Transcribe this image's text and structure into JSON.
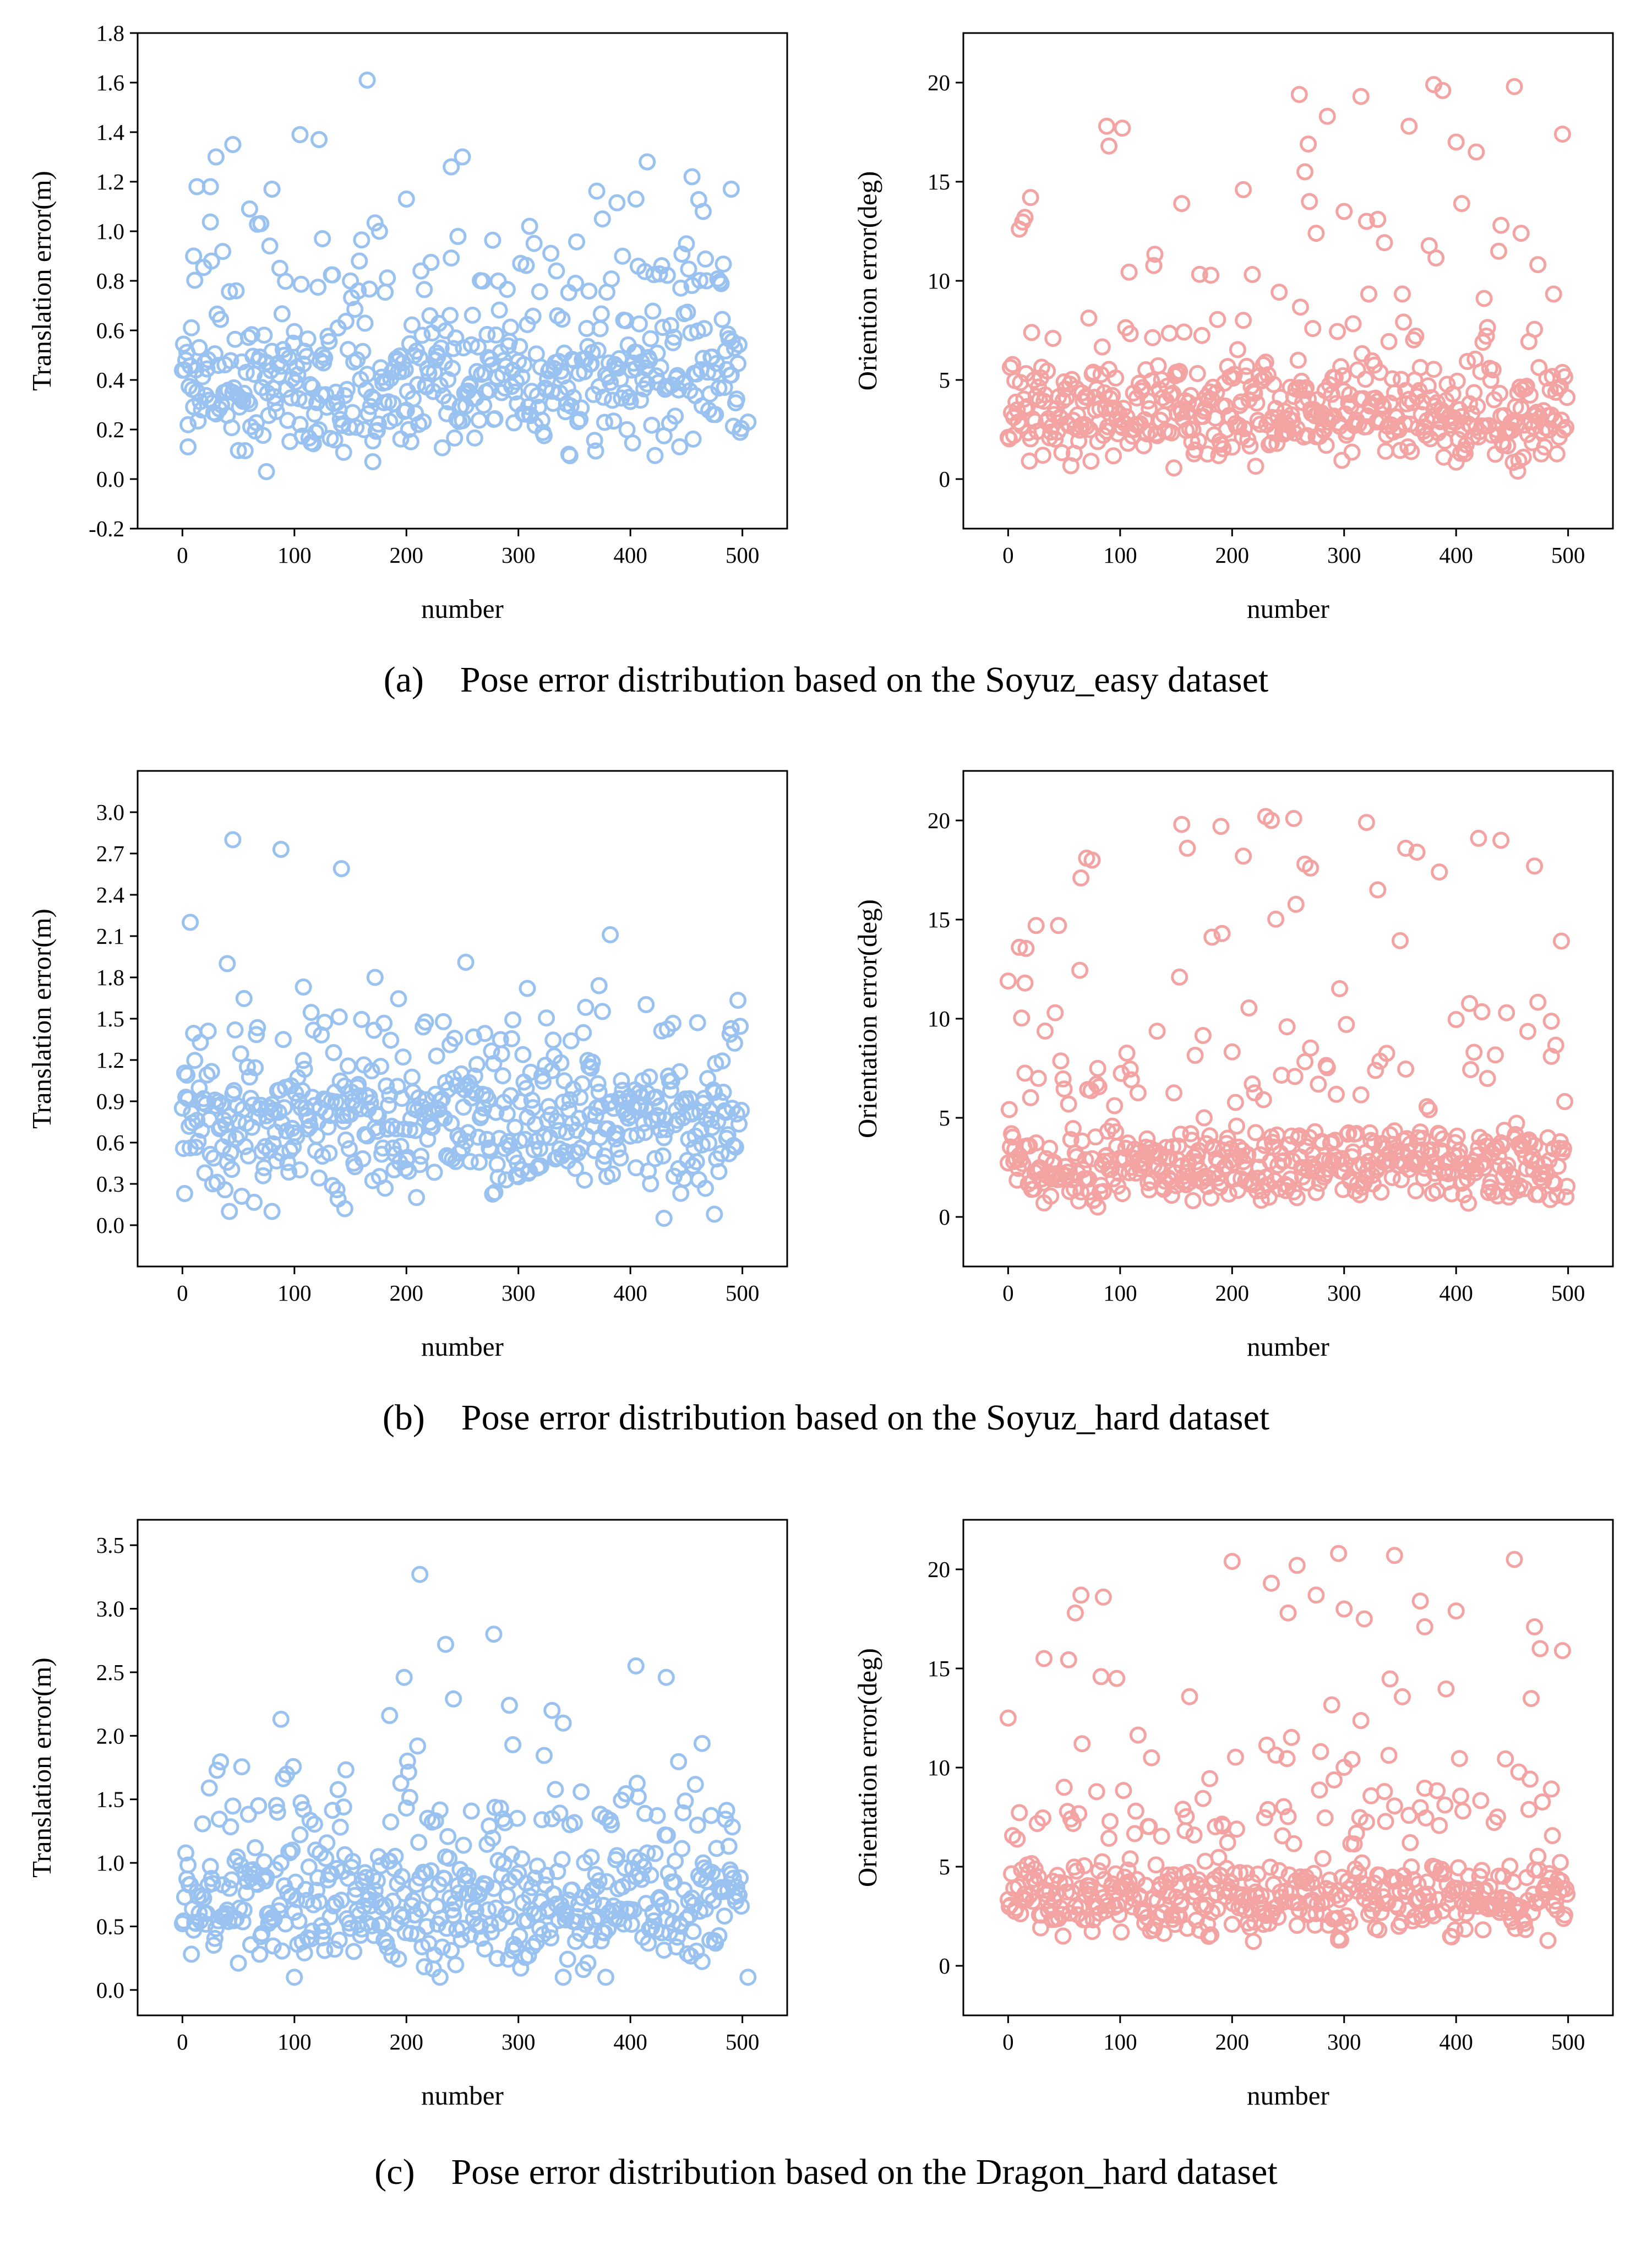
{
  "colors": {
    "translation": "#99c2f0",
    "orientation": "#f4a3a3"
  },
  "captions": [
    {
      "label": "(a)",
      "text": "Pose error distribution based on the Soyuz_easy dataset"
    },
    {
      "label": "(b)",
      "text": "Pose error distribution based on the Soyuz_hard dataset"
    },
    {
      "label": "(c)",
      "text": "Pose error distribution based on the Dragon_hard dataset"
    }
  ],
  "chart_data": [
    {
      "id": "a-translation",
      "type": "scatter",
      "color_key": "translation",
      "xlabel": "number",
      "ylabel": "Translation error(m)",
      "xlim": [
        -40,
        540
      ],
      "ylim": [
        -0.2,
        1.8
      ],
      "xticks": [
        0,
        100,
        200,
        300,
        400,
        500
      ],
      "yticks": [
        -0.2,
        0.0,
        0.2,
        0.4,
        0.6,
        0.8,
        1.0,
        1.2,
        1.4,
        1.6,
        1.8
      ],
      "ytick_labels": [
        "-0.2",
        "0.0",
        "0.2",
        "0.4",
        "0.6",
        "0.8",
        "1.0",
        "1.2",
        "1.4",
        "1.6",
        "1.8"
      ],
      "n_points": 500,
      "seed": 11,
      "bulk_range": [
        0.08,
        0.72
      ],
      "bulk_share": 0.86,
      "tail_range": [
        0.72,
        1.25
      ],
      "outliers": [
        [
          5,
          0.13
        ],
        [
          10,
          0.9
        ],
        [
          13,
          1.18
        ],
        [
          25,
          1.18
        ],
        [
          30,
          1.3
        ],
        [
          45,
          1.35
        ],
        [
          60,
          1.09
        ],
        [
          75,
          0.03
        ],
        [
          80,
          1.17
        ],
        [
          105,
          1.39
        ],
        [
          122,
          1.37
        ],
        [
          125,
          0.97
        ],
        [
          165,
          1.61
        ],
        [
          170,
          0.07
        ],
        [
          200,
          1.13
        ],
        [
          240,
          1.26
        ],
        [
          250,
          1.3
        ],
        [
          310,
          1.02
        ],
        [
          345,
          0.1
        ],
        [
          405,
          1.13
        ],
        [
          415,
          1.28
        ],
        [
          455,
          1.22
        ],
        [
          465,
          1.08
        ],
        [
          490,
          1.17
        ],
        [
          505,
          0.23
        ]
      ]
    },
    {
      "id": "a-orientation",
      "type": "scatter",
      "color_key": "orientation",
      "xlabel": "number",
      "ylabel": "Oriention error(deg)",
      "xlim": [
        -40,
        540
      ],
      "ylim": [
        -2.5,
        22.5
      ],
      "xticks": [
        0,
        100,
        200,
        300,
        400,
        500
      ],
      "yticks": [
        0,
        5,
        10,
        15,
        20
      ],
      "ytick_labels": [
        "0",
        "5",
        "10",
        "15",
        "20"
      ],
      "n_points": 500,
      "seed": 23,
      "bulk_range": [
        0.4,
        6.2
      ],
      "bulk_share": 0.88,
      "tail_range": [
        6.2,
        14
      ],
      "outliers": [
        [
          15,
          13.2
        ],
        [
          20,
          14.2
        ],
        [
          88,
          17.8
        ],
        [
          90,
          16.8
        ],
        [
          102,
          17.7
        ],
        [
          155,
          13.9
        ],
        [
          210,
          14.6
        ],
        [
          260,
          19.4
        ],
        [
          265,
          15.5
        ],
        [
          268,
          16.9
        ],
        [
          275,
          12.4
        ],
        [
          285,
          18.3
        ],
        [
          300,
          13.5
        ],
        [
          315,
          19.3
        ],
        [
          320,
          13.0
        ],
        [
          330,
          13.1
        ],
        [
          358,
          17.8
        ],
        [
          380,
          19.9
        ],
        [
          388,
          19.6
        ],
        [
          400,
          17.0
        ],
        [
          405,
          13.9
        ],
        [
          418,
          16.5
        ],
        [
          440,
          12.8
        ],
        [
          452,
          19.8
        ],
        [
          458,
          12.4
        ],
        [
          495,
          17.4
        ],
        [
          5,
          2.2
        ],
        [
          455,
          0.4
        ]
      ]
    },
    {
      "id": "b-translation",
      "type": "scatter",
      "color_key": "translation",
      "xlabel": "number",
      "ylabel": "Translation error(m)",
      "xlim": [
        -40,
        540
      ],
      "ylim": [
        -0.3,
        3.3
      ],
      "xticks": [
        0,
        100,
        200,
        300,
        400,
        500
      ],
      "yticks": [
        0.0,
        0.3,
        0.6,
        0.9,
        1.2,
        1.5,
        1.8,
        2.1,
        2.4,
        2.7,
        3.0
      ],
      "ytick_labels": [
        "0.0",
        "0.3",
        "0.6",
        "0.9",
        "1.2",
        "1.5",
        "1.8",
        "2.1",
        "2.4",
        "2.7",
        "3.0"
      ],
      "n_points": 500,
      "seed": 37,
      "bulk_range": [
        0.15,
        1.3
      ],
      "bulk_share": 0.9,
      "tail_range": [
        1.3,
        1.75
      ],
      "outliers": [
        [
          7,
          2.2
        ],
        [
          45,
          2.8
        ],
        [
          40,
          1.9
        ],
        [
          88,
          2.73
        ],
        [
          142,
          2.59
        ],
        [
          108,
          1.73
        ],
        [
          172,
          1.8
        ],
        [
          253,
          1.91
        ],
        [
          308,
          1.72
        ],
        [
          382,
          2.11
        ],
        [
          372,
          1.74
        ],
        [
          42,
          0.1
        ],
        [
          80,
          0.1
        ],
        [
          145,
          0.12
        ],
        [
          430,
          0.05
        ],
        [
          475,
          0.08
        ],
        [
          2,
          0.23
        ]
      ]
    },
    {
      "id": "b-orientation",
      "type": "scatter",
      "color_key": "orientation",
      "xlabel": "number",
      "ylabel": "Orientation error(deg)",
      "xlim": [
        -40,
        540
      ],
      "ylim": [
        -2.5,
        22.5
      ],
      "xticks": [
        0,
        100,
        200,
        300,
        400,
        500
      ],
      "yticks": [
        0,
        5,
        10,
        15,
        20
      ],
      "ytick_labels": [
        "0",
        "5",
        "10",
        "15",
        "20"
      ],
      "n_points": 500,
      "seed": 53,
      "bulk_range": [
        0.5,
        4.8
      ],
      "bulk_share": 0.84,
      "tail_range": [
        4.8,
        16
      ],
      "outliers": [
        [
          0,
          11.9
        ],
        [
          10,
          13.6
        ],
        [
          15,
          11.8
        ],
        [
          25,
          14.7
        ],
        [
          45,
          14.7
        ],
        [
          65,
          17.1
        ],
        [
          70,
          18.1
        ],
        [
          75,
          18.0
        ],
        [
          155,
          19.8
        ],
        [
          160,
          18.6
        ],
        [
          190,
          19.7
        ],
        [
          210,
          18.2
        ],
        [
          230,
          20.2
        ],
        [
          235,
          20.0
        ],
        [
          255,
          20.1
        ],
        [
          265,
          17.8
        ],
        [
          270,
          17.6
        ],
        [
          320,
          19.9
        ],
        [
          330,
          16.5
        ],
        [
          355,
          18.6
        ],
        [
          365,
          18.4
        ],
        [
          385,
          17.4
        ],
        [
          420,
          19.1
        ],
        [
          440,
          19.0
        ],
        [
          470,
          17.7
        ],
        [
          485,
          8.1
        ],
        [
          80,
          0.5
        ]
      ]
    },
    {
      "id": "c-translation",
      "type": "scatter",
      "color_key": "translation",
      "xlabel": "number",
      "ylabel": "Translation error(m)",
      "xlim": [
        -40,
        540
      ],
      "ylim": [
        -0.2,
        3.7
      ],
      "xticks": [
        0,
        100,
        200,
        300,
        400,
        500
      ],
      "yticks": [
        0.0,
        0.5,
        1.0,
        1.5,
        2.0,
        2.5,
        3.0,
        3.5
      ],
      "ytick_labels": [
        "0.0",
        "0.5",
        "1.0",
        "1.5",
        "2.0",
        "2.5",
        "3.0",
        "3.5"
      ],
      "n_points": 500,
      "seed": 71,
      "bulk_range": [
        0.15,
        1.25
      ],
      "bulk_share": 0.85,
      "tail_range": [
        1.25,
        1.85
      ],
      "outliers": [
        [
          88,
          2.13
        ],
        [
          185,
          2.16
        ],
        [
          198,
          2.46
        ],
        [
          212,
          3.27
        ],
        [
          235,
          2.72
        ],
        [
          242,
          2.29
        ],
        [
          278,
          2.8
        ],
        [
          292,
          2.24
        ],
        [
          330,
          2.2
        ],
        [
          340,
          2.1
        ],
        [
          405,
          2.55
        ],
        [
          432,
          2.46
        ],
        [
          210,
          1.92
        ],
        [
          295,
          1.93
        ],
        [
          464,
          1.94
        ],
        [
          100,
          0.1
        ],
        [
          230,
          0.1
        ],
        [
          340,
          0.1
        ],
        [
          505,
          0.1
        ],
        [
          378,
          0.1
        ]
      ]
    },
    {
      "id": "c-orientation",
      "type": "scatter",
      "color_key": "orientation",
      "xlabel": "number",
      "ylabel": "Orientation error(deg)",
      "xlim": [
        -40,
        540
      ],
      "ylim": [
        -2.5,
        22.5
      ],
      "xticks": [
        0,
        100,
        200,
        300,
        400,
        500
      ],
      "yticks": [
        0,
        5,
        10,
        15,
        20
      ],
      "ytick_labels": [
        "0",
        "5",
        "10",
        "15",
        "20"
      ],
      "n_points": 500,
      "seed": 97,
      "bulk_range": [
        1.2,
        5.8
      ],
      "bulk_share": 0.82,
      "tail_range": [
        5.8,
        15.5
      ],
      "outliers": [
        [
          65,
          18.7
        ],
        [
          85,
          18.6
        ],
        [
          200,
          20.4
        ],
        [
          235,
          19.3
        ],
        [
          250,
          17.8
        ],
        [
          258,
          20.2
        ],
        [
          275,
          18.7
        ],
        [
          295,
          20.8
        ],
        [
          300,
          18.0
        ],
        [
          318,
          17.5
        ],
        [
          345,
          20.7
        ],
        [
          368,
          18.4
        ],
        [
          372,
          17.1
        ],
        [
          400,
          17.9
        ],
        [
          452,
          20.5
        ],
        [
          470,
          17.1
        ],
        [
          475,
          16.0
        ],
        [
          495,
          15.9
        ],
        [
          60,
          17.8
        ],
        [
          0,
          12.5
        ],
        [
          295,
          1.3
        ]
      ]
    }
  ]
}
